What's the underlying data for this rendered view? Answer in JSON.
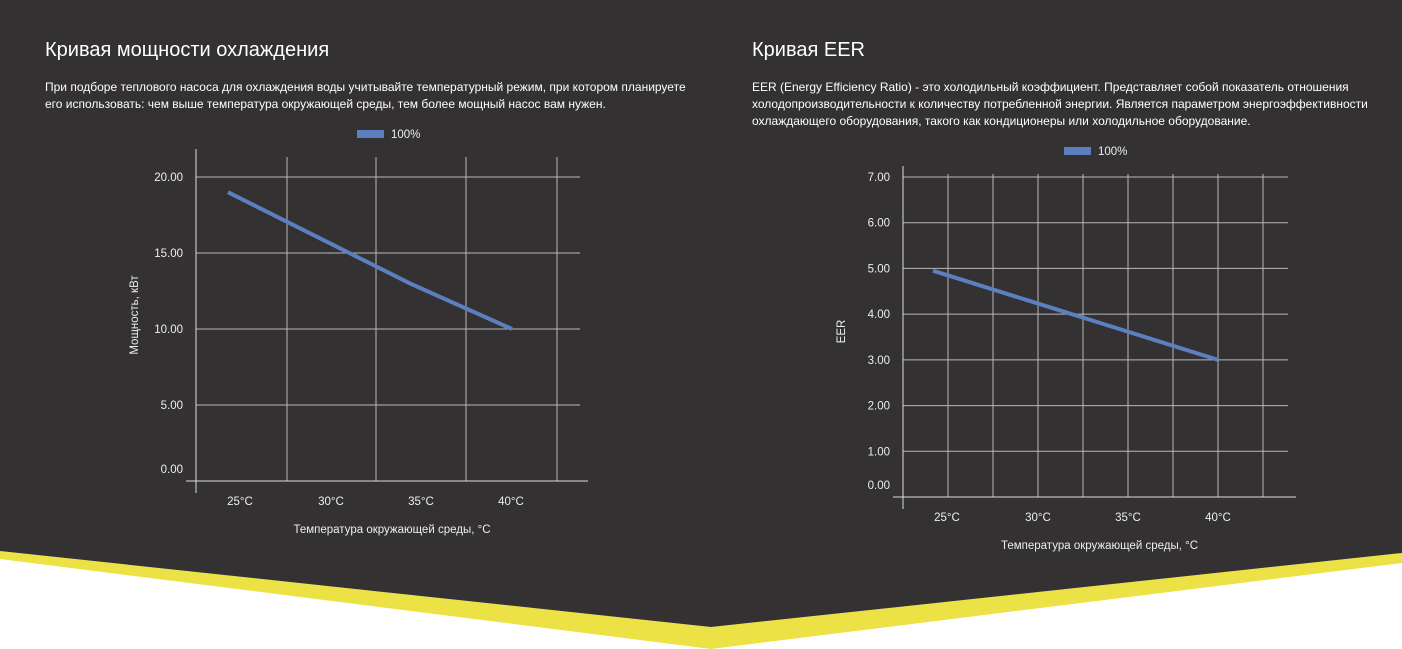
{
  "colors": {
    "background": "#333132",
    "accent": "#ede245",
    "series": "#5b7fbf",
    "grid": "#b8b8b8"
  },
  "sections": [
    {
      "title": "Кривая мощности охлаждения",
      "description": "При подборе теплового насоса для охлаждения воды учитывайте температурный режим, при котором планируете его использовать: чем выше температура окружающей среды, тем более мощный насос вам нужен."
    },
    {
      "title": "Кривая EER",
      "description": "EER (Energy Efficiency Ratio) - это холодильный коэффициент. Представляет собой показатель отношения холодопроизводительности к количеству потребленной энергии. Является параметром энергоэффективности охлаждающего оборудования, такого как кондиционеры или холодильное оборудование."
    }
  ],
  "chart_data": [
    {
      "type": "line",
      "categories": [
        "25°C",
        "30°C",
        "35°C",
        "40°C"
      ],
      "series": [
        {
          "name": "100%",
          "values": [
            19,
            16,
            13,
            10
          ]
        }
      ],
      "xlabel": "Температура окружающей среды, °C",
      "ylabel": "Мощность, кВт",
      "yticks": [
        "0.00",
        "5.00",
        "10.00",
        "15.00",
        "20.00"
      ],
      "ylim": [
        0,
        20
      ],
      "grid": true,
      "legend": "top-center"
    },
    {
      "type": "line",
      "categories": [
        "25°C",
        "30°C",
        "35°C",
        "40°C"
      ],
      "series": [
        {
          "name": "100%",
          "values": [
            4.95,
            4.3,
            3.65,
            3.0
          ]
        }
      ],
      "xlabel": "Температура окружающей среды, °C",
      "ylabel": "EER",
      "yticks": [
        "0.00",
        "1.00",
        "2.00",
        "3.00",
        "4.00",
        "5.00",
        "6.00",
        "7.00"
      ],
      "ylim": [
        0,
        7
      ],
      "grid": true,
      "legend": "top-center"
    }
  ]
}
